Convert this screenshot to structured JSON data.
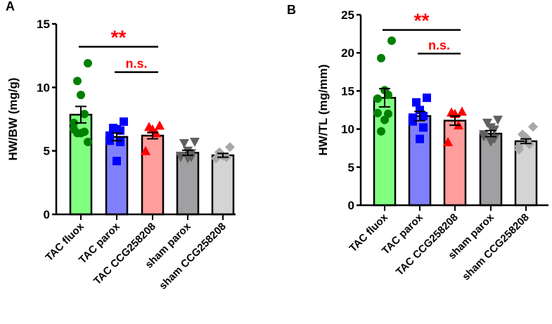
{
  "chart_data": [
    {
      "type": "bar",
      "panel_label": "A",
      "ylabel": "HW/BW (mg/g)",
      "ylim": [
        0,
        15
      ],
      "yticks": [
        0,
        5,
        10,
        15
      ],
      "categories": [
        "TAC fluox",
        "TAC parox",
        "TAC CCG258208",
        "sham parox",
        "sham CCG258208"
      ],
      "values": [
        7.85,
        6.1,
        6.2,
        4.85,
        4.65
      ],
      "sem": [
        0.65,
        0.3,
        0.25,
        0.2,
        0.15
      ],
      "points": [
        [
          11.9,
          10.5,
          9.4,
          7.9,
          7.2,
          6.7,
          6.5,
          6.4,
          6.4,
          5.7
        ],
        [
          7.3,
          6.8,
          6.7,
          6.6,
          6.2,
          5.8,
          5.7,
          4.2
        ],
        [
          7.0,
          6.9,
          6.7,
          6.4,
          5.0,
          5.0
        ],
        [
          5.7,
          5.6,
          5.0,
          4.8,
          4.6,
          4.5,
          4.5,
          4.4
        ],
        [
          5.3,
          4.9,
          4.6,
          4.5,
          4.4
        ]
      ],
      "significance": [
        {
          "from": 0,
          "to": 2,
          "y": 13.2,
          "label": "**"
        },
        {
          "from": 1,
          "to": 2,
          "y": 11.2,
          "label": "n.s."
        }
      ]
    },
    {
      "type": "bar",
      "panel_label": "B",
      "ylabel": "HW/TL (mg/mm)",
      "ylim": [
        0,
        25
      ],
      "yticks": [
        0,
        5,
        10,
        15,
        20,
        25
      ],
      "categories": [
        "TAC fluox",
        "TAC parox",
        "TAC CCG258208",
        "sham parox",
        "sham CCG258208"
      ],
      "values": [
        14.1,
        11.7,
        11.1,
        9.4,
        8.4
      ],
      "sem": [
        1.2,
        0.6,
        0.6,
        0.4,
        0.3
      ],
      "points": [
        [
          21.6,
          19.3,
          15.1,
          14.5,
          14.0,
          12.1,
          12.0,
          11.2,
          9.7
        ],
        [
          14.1,
          13.5,
          12.5,
          11.7,
          11.5,
          11.0,
          10.2,
          8.7
        ],
        [
          12.3,
          12.2,
          12.0,
          10.5,
          8.3,
          8.3
        ],
        [
          11.2,
          10.8,
          10.2,
          9.9,
          9.3,
          9.0,
          8.7,
          8.3
        ],
        [
          10.3,
          9.3,
          8.9,
          8.0,
          7.7,
          7.3
        ]
      ],
      "significance": [
        {
          "from": 0,
          "to": 2,
          "y": 23.0,
          "label": "**"
        },
        {
          "from": 1,
          "to": 2,
          "y": 19.9,
          "label": "n.s."
        }
      ]
    }
  ],
  "colors": {
    "bar_fills": [
      "#80ff80",
      "#8080ff",
      "#ff9c9c",
      "#a0a0a3",
      "#d4d4d4"
    ],
    "point_colors": [
      "#008000",
      "#0000ff",
      "#ff0000",
      "#606060",
      "#a8a8a8"
    ],
    "marker_shapes": [
      "circle",
      "square",
      "triangle-up",
      "triangle-down",
      "diamond"
    ],
    "significance": "#ff0000",
    "axis": "#000000"
  }
}
